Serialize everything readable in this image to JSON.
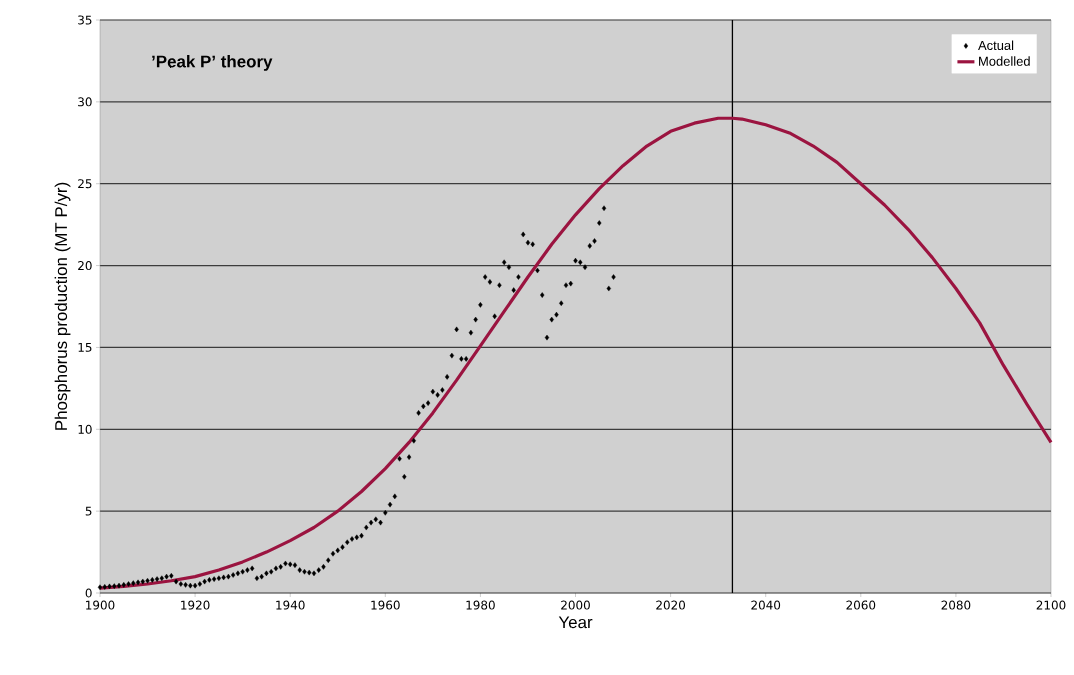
{
  "chart_data": {
    "type": "scatter",
    "xlabel": "Year",
    "ylabel": "Phosphorus production (MT P/yr)",
    "annotations": [
      "’Peak P’ theory"
    ],
    "xlim": [
      1900,
      2100
    ],
    "ylim": [
      0,
      35
    ],
    "xticks": [
      1900,
      1920,
      1940,
      1960,
      1980,
      2000,
      2020,
      2040,
      2060,
      2080,
      2100
    ],
    "yticks": [
      0,
      5,
      10,
      15,
      20,
      25,
      30,
      35
    ],
    "grid": "y",
    "legend": "top right",
    "ref_lines": [
      {
        "axis": "x",
        "value": 2033,
        "color": "#000000"
      }
    ],
    "series": [
      {
        "name": "Actual",
        "marker": "diamond",
        "color": "#000000",
        "x": [
          1900,
          1901,
          1902,
          1903,
          1904,
          1905,
          1906,
          1907,
          1908,
          1909,
          1910,
          1911,
          1912,
          1913,
          1914,
          1915,
          1916,
          1917,
          1918,
          1919,
          1920,
          1921,
          1922,
          1923,
          1924,
          1925,
          1926,
          1927,
          1928,
          1929,
          1930,
          1931,
          1932,
          1933,
          1934,
          1935,
          1936,
          1937,
          1938,
          1939,
          1940,
          1941,
          1942,
          1943,
          1944,
          1945,
          1946,
          1947,
          1948,
          1949,
          1950,
          1951,
          1952,
          1953,
          1954,
          1955,
          1956,
          1957,
          1958,
          1959,
          1960,
          1961,
          1962,
          1963,
          1964,
          1965,
          1966,
          1967,
          1968,
          1969,
          1970,
          1971,
          1972,
          1973,
          1974,
          1975,
          1976,
          1977,
          1978,
          1979,
          1980,
          1981,
          1982,
          1983,
          1984,
          1985,
          1986,
          1987,
          1988,
          1989,
          1990,
          1991,
          1992,
          1993,
          1994,
          1995,
          1996,
          1997,
          1998,
          1999,
          2000,
          2001,
          2002,
          2003,
          2004,
          2005,
          2006,
          2007,
          2008
        ],
        "values": [
          0.35,
          0.37,
          0.4,
          0.42,
          0.45,
          0.5,
          0.55,
          0.6,
          0.65,
          0.7,
          0.75,
          0.8,
          0.85,
          0.9,
          1.0,
          1.05,
          0.7,
          0.55,
          0.5,
          0.45,
          0.45,
          0.55,
          0.7,
          0.8,
          0.85,
          0.9,
          0.95,
          1.0,
          1.1,
          1.2,
          1.3,
          1.4,
          1.5,
          0.9,
          1.0,
          1.2,
          1.3,
          1.5,
          1.6,
          1.8,
          1.75,
          1.7,
          1.4,
          1.3,
          1.25,
          1.2,
          1.4,
          1.6,
          2.0,
          2.4,
          2.6,
          2.8,
          3.1,
          3.3,
          3.4,
          3.5,
          4.0,
          4.3,
          4.5,
          4.3,
          4.9,
          5.4,
          5.9,
          8.2,
          7.1,
          8.3,
          9.3,
          11.0,
          11.4,
          11.6,
          12.3,
          12.1,
          12.4,
          13.2,
          14.5,
          16.1,
          14.3,
          14.3,
          15.9,
          16.7,
          17.6,
          19.3,
          19.0,
          16.9,
          18.8,
          20.2,
          19.9,
          18.5,
          19.3,
          21.9,
          21.4,
          21.3,
          19.7,
          18.2,
          15.6,
          16.7,
          17.0,
          17.7,
          18.8,
          18.9,
          20.3,
          20.2,
          19.9,
          21.2,
          21.5,
          22.6,
          23.5,
          18.6,
          19.3
        ]
      },
      {
        "name": "Modelled",
        "type": "line",
        "color": "#9b1440",
        "x": [
          1900,
          1905,
          1910,
          1915,
          1920,
          1925,
          1930,
          1935,
          1940,
          1945,
          1950,
          1955,
          1960,
          1965,
          1970,
          1975,
          1980,
          1985,
          1990,
          1995,
          2000,
          2005,
          2010,
          2015,
          2020,
          2025,
          2030,
          2033,
          2035,
          2040,
          2045,
          2050,
          2055,
          2060,
          2065,
          2070,
          2075,
          2080,
          2085,
          2090,
          2095,
          2100
        ],
        "values": [
          0.3,
          0.4,
          0.55,
          0.75,
          1.0,
          1.4,
          1.9,
          2.5,
          3.2,
          4.0,
          5.0,
          6.2,
          7.6,
          9.2,
          11.0,
          13.0,
          15.1,
          17.2,
          19.3,
          21.3,
          23.1,
          24.7,
          26.1,
          27.3,
          28.2,
          28.7,
          29.0,
          29.0,
          28.95,
          28.6,
          28.1,
          27.3,
          26.3,
          25.0,
          23.7,
          22.2,
          20.5,
          18.6,
          16.5,
          13.9,
          11.5,
          9.2
        ]
      }
    ]
  }
}
